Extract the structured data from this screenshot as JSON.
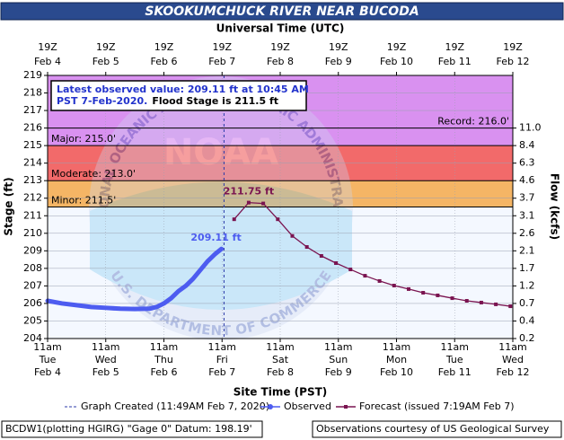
{
  "chart_data": {
    "type": "line",
    "title": "SKOOKUMCHUCK RIVER NEAR BUCODA",
    "x_label": "Site Time (PST)",
    "x2_label": "Universal Time (UTC)",
    "y_label": "Stage (ft)",
    "y2_label": "Flow (kcfs)",
    "xlim": [
      "2020-02-04T11:00",
      "2020-02-12T11:00"
    ],
    "xticks": [
      {
        "value": "2020-02-04T11:00",
        "label": [
          "11am",
          "Tue",
          "Feb 4"
        ]
      },
      {
        "value": "2020-02-05T11:00",
        "label": [
          "11am",
          "Wed",
          "Feb 5"
        ]
      },
      {
        "value": "2020-02-06T11:00",
        "label": [
          "11am",
          "Thu",
          "Feb 6"
        ]
      },
      {
        "value": "2020-02-07T11:00",
        "label": [
          "11am",
          "Fri",
          "Feb 7"
        ]
      },
      {
        "value": "2020-02-08T11:00",
        "label": [
          "11am",
          "Sat",
          "Feb 8"
        ]
      },
      {
        "value": "2020-02-09T11:00",
        "label": [
          "11am",
          "Sun",
          "Feb 9"
        ]
      },
      {
        "value": "2020-02-10T11:00",
        "label": [
          "11am",
          "Mon",
          "Feb 10"
        ]
      },
      {
        "value": "2020-02-11T11:00",
        "label": [
          "11am",
          "Tue",
          "Feb 11"
        ]
      },
      {
        "value": "2020-02-12T11:00",
        "label": [
          "11am",
          "Wed",
          "Feb 12"
        ]
      }
    ],
    "x2ticks": [
      {
        "value": "2020-02-04T11:00",
        "label": [
          "19Z",
          "Feb 4"
        ]
      },
      {
        "value": "2020-02-05T11:00",
        "label": [
          "19Z",
          "Feb 5"
        ]
      },
      {
        "value": "2020-02-06T11:00",
        "label": [
          "19Z",
          "Feb 6"
        ]
      },
      {
        "value": "2020-02-07T11:00",
        "label": [
          "19Z",
          "Feb 7"
        ]
      },
      {
        "value": "2020-02-08T11:00",
        "label": [
          "19Z",
          "Feb 8"
        ]
      },
      {
        "value": "2020-02-09T11:00",
        "label": [
          "19Z",
          "Feb 9"
        ]
      },
      {
        "value": "2020-02-10T11:00",
        "label": [
          "19Z",
          "Feb 10"
        ]
      },
      {
        "value": "2020-02-11T11:00",
        "label": [
          "19Z",
          "Feb 11"
        ]
      },
      {
        "value": "2020-02-12T11:00",
        "label": [
          "19Z",
          "Feb 12"
        ]
      }
    ],
    "ylim": [
      204,
      219
    ],
    "yticks": [
      204,
      205,
      206,
      207,
      208,
      209,
      210,
      211,
      212,
      213,
      214,
      215,
      216,
      217,
      218,
      219
    ],
    "y2ticks": [
      {
        "value": 0.2,
        "label": "0.2",
        "at_stage": 204
      },
      {
        "value": 0.4,
        "label": "0.4",
        "at_stage": 205
      },
      {
        "value": 0.7,
        "label": "0.7",
        "at_stage": 206
      },
      {
        "value": 1.2,
        "label": "1.2",
        "at_stage": 207
      },
      {
        "value": 1.7,
        "label": "1.7",
        "at_stage": 208
      },
      {
        "value": 2.1,
        "label": "2.1",
        "at_stage": 209
      },
      {
        "value": 2.6,
        "label": "2.6",
        "at_stage": 210
      },
      {
        "value": 3.1,
        "label": "3.1",
        "at_stage": 211
      },
      {
        "value": 3.7,
        "label": "3.7",
        "at_stage": 212
      },
      {
        "value": 4.6,
        "label": "4.6",
        "at_stage": 213
      },
      {
        "value": 6.3,
        "label": "6.3",
        "at_stage": 214
      },
      {
        "value": 8.4,
        "label": "8.4",
        "at_stage": 215
      },
      {
        "value": 11.0,
        "label": "11.0",
        "at_stage": 216
      }
    ],
    "grid": true,
    "flood_categories": [
      {
        "label": "Minor: 211.5'",
        "value": 211.5,
        "color": "#f5b565"
      },
      {
        "label": "Moderate: 213.0'",
        "value": 213.0,
        "color": "#f26a6a"
      },
      {
        "label": "Major: 215.0'",
        "value": 215.0,
        "color": "#d991f0"
      },
      {
        "label": "Record: 216.0'",
        "value": 216.0
      }
    ],
    "graph_created": {
      "label": "Graph Created (11:49AM Feb 7, 2020)",
      "x": "2020-02-07T11:49",
      "color": "#2b3ba8"
    },
    "series": [
      {
        "name": "Observed",
        "color": "#4d5cf0",
        "x": [
          "2020-02-04T11:00",
          "2020-02-04T17:00",
          "2020-02-04T23:00",
          "2020-02-05T05:00",
          "2020-02-05T11:00",
          "2020-02-05T17:00",
          "2020-02-05T23:00",
          "2020-02-06T05:00",
          "2020-02-06T08:00",
          "2020-02-06T11:00",
          "2020-02-06T14:00",
          "2020-02-06T17:00",
          "2020-02-06T20:00",
          "2020-02-06T23:00",
          "2020-02-07T02:00",
          "2020-02-07T05:00",
          "2020-02-07T08:00",
          "2020-02-07T10:45"
        ],
        "values": [
          206.15,
          206.0,
          205.9,
          205.8,
          205.75,
          205.7,
          205.68,
          205.7,
          205.8,
          206.0,
          206.3,
          206.7,
          207.0,
          207.4,
          207.9,
          208.4,
          208.8,
          209.11
        ],
        "value_labels": [
          null,
          null,
          null,
          null,
          null,
          null,
          null,
          null,
          null,
          null,
          null,
          null,
          null,
          null,
          null,
          null,
          null,
          "209.11 ft"
        ]
      },
      {
        "name": "Forecast (issued 7:19AM Feb 7)",
        "color": "#7a1450",
        "x": [
          "2020-02-07T16:00",
          "2020-02-07T22:00",
          "2020-02-08T04:00",
          "2020-02-08T10:00",
          "2020-02-08T16:00",
          "2020-02-08T22:00",
          "2020-02-09T04:00",
          "2020-02-09T10:00",
          "2020-02-09T16:00",
          "2020-02-09T22:00",
          "2020-02-10T04:00",
          "2020-02-10T10:00",
          "2020-02-10T16:00",
          "2020-02-10T22:00",
          "2020-02-11T04:00",
          "2020-02-11T10:00",
          "2020-02-11T16:00",
          "2020-02-11T22:00",
          "2020-02-12T04:00",
          "2020-02-12T10:00"
        ],
        "values": [
          210.8,
          211.75,
          211.7,
          210.8,
          209.85,
          209.22,
          208.71,
          208.3,
          207.94,
          207.58,
          207.28,
          207.02,
          206.82,
          206.61,
          206.46,
          206.3,
          206.15,
          206.05,
          205.95,
          205.84
        ],
        "value_labels": [
          null,
          "211.75 ft",
          null,
          null,
          null,
          null,
          null,
          null,
          null,
          null,
          null,
          null,
          null,
          null,
          null,
          null,
          null,
          null,
          null,
          null
        ]
      }
    ],
    "annotation": {
      "line1": "Latest observed value: 209.11 ft at 10:45 AM",
      "line2": "PST 7-Feb-2020.",
      "flood_stage": "Flood Stage is 211.5 ft"
    },
    "watermark": {
      "emblem": "NOAA",
      "upper_ring": "NATIONAL OCEANIC AND ATMOSPHERIC ADMINISTRATION",
      "lower_ring": "U.S. DEPARTMENT OF COMMERCE"
    },
    "footer_left": "BCDW1(plotting HGIRG) \"Gage 0\" Datum: 198.19'",
    "footer_right": "Observations courtesy of US Geological Survey"
  }
}
